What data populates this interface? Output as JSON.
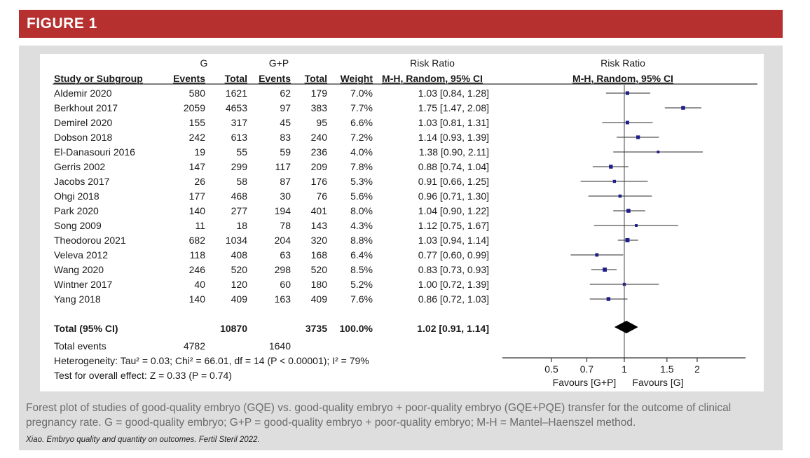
{
  "banner": {
    "title": "FIGURE 1"
  },
  "caption": "Forest plot of studies of good-quality embryo (GQE) vs. good-quality embryo + poor-quality embryo (GQE+PQE) transfer for the outcome of clinical pregnancy rate. G = good-quality embryo; G+P = good-quality embryo + poor-quality embryo; M-H = Mantel–Haenszel method.",
  "credit": "Xiao. Embryo quality and quantity on outcomes. Fertil Steril 2022.",
  "colors": {
    "banner": "#b5302e",
    "marker": "#1f1f8a",
    "diamond": "#000000"
  },
  "headers": {
    "group_g": "G",
    "group_gp": "G+P",
    "risk_ratio": "Risk Ratio",
    "plot_title": "Risk Ratio",
    "plot_method": "M-H, Random, 95% CI",
    "study": "Study or Subgroup",
    "events_g": "Events",
    "total_g": "Total",
    "events_gp": "Events",
    "total_gp": "Total",
    "weight": "Weight",
    "method": "M-H, Random, 95% CI"
  },
  "chart_data": {
    "type": "forest",
    "xaxis": {
      "scale": "log",
      "ticks": [
        "0.5",
        "0.7",
        "1",
        "1.5",
        "2"
      ],
      "tick_values": [
        0.5,
        0.7,
        1,
        1.5,
        2
      ],
      "range": [
        0.5,
        2
      ]
    },
    "favours_left": "Favours [G+P]",
    "favours_right": "Favours [G]",
    "studies": [
      {
        "name": "Aldemir 2020",
        "events_g": "580",
        "total_g": "1621",
        "events_gp": "62",
        "total_gp": "179",
        "weight": "7.0%",
        "ci_text": "1.03 [0.84, 1.28]",
        "rr": 1.03,
        "lo": 0.84,
        "hi": 1.28
      },
      {
        "name": "Berkhout 2017",
        "events_g": "2059",
        "total_g": "4653",
        "events_gp": "97",
        "total_gp": "383",
        "weight": "7.7%",
        "ci_text": "1.75 [1.47, 2.08]",
        "rr": 1.75,
        "lo": 1.47,
        "hi": 2.08
      },
      {
        "name": "Demirel 2020",
        "events_g": "155",
        "total_g": "317",
        "events_gp": "45",
        "total_gp": "95",
        "weight": "6.6%",
        "ci_text": "1.03 [0.81, 1.31]",
        "rr": 1.03,
        "lo": 0.81,
        "hi": 1.31
      },
      {
        "name": "Dobson 2018",
        "events_g": "242",
        "total_g": "613",
        "events_gp": "83",
        "total_gp": "240",
        "weight": "7.2%",
        "ci_text": "1.14 [0.93, 1.39]",
        "rr": 1.14,
        "lo": 0.93,
        "hi": 1.39
      },
      {
        "name": "El-Danasouri 2016",
        "events_g": "19",
        "total_g": "55",
        "events_gp": "59",
        "total_gp": "236",
        "weight": "4.0%",
        "ci_text": "1.38 [0.90, 2.11]",
        "rr": 1.38,
        "lo": 0.9,
        "hi": 2.11
      },
      {
        "name": "Gerris  2002",
        "events_g": "147",
        "total_g": "299",
        "events_gp": "117",
        "total_gp": "209",
        "weight": "7.8%",
        "ci_text": "0.88 [0.74, 1.04]",
        "rr": 0.88,
        "lo": 0.74,
        "hi": 1.04
      },
      {
        "name": "Jacobs 2017",
        "events_g": "26",
        "total_g": "58",
        "events_gp": "87",
        "total_gp": "176",
        "weight": "5.3%",
        "ci_text": "0.91 [0.66, 1.25]",
        "rr": 0.91,
        "lo": 0.66,
        "hi": 1.25
      },
      {
        "name": "Ohgi 2018",
        "events_g": "177",
        "total_g": "468",
        "events_gp": "30",
        "total_gp": "76",
        "weight": "5.6%",
        "ci_text": "0.96 [0.71, 1.30]",
        "rr": 0.96,
        "lo": 0.71,
        "hi": 1.3
      },
      {
        "name": "Park 2020",
        "events_g": "140",
        "total_g": "277",
        "events_gp": "194",
        "total_gp": "401",
        "weight": "8.0%",
        "ci_text": "1.04 [0.90, 1.22]",
        "rr": 1.04,
        "lo": 0.9,
        "hi": 1.22
      },
      {
        "name": "Song  2009",
        "events_g": "11",
        "total_g": "18",
        "events_gp": "78",
        "total_gp": "143",
        "weight": "4.3%",
        "ci_text": "1.12 [0.75, 1.67]",
        "rr": 1.12,
        "lo": 0.75,
        "hi": 1.67
      },
      {
        "name": "Theodorou 2021",
        "events_g": "682",
        "total_g": "1034",
        "events_gp": "204",
        "total_gp": "320",
        "weight": "8.8%",
        "ci_text": "1.03 [0.94, 1.14]",
        "rr": 1.03,
        "lo": 0.94,
        "hi": 1.14
      },
      {
        "name": "Veleva 2012",
        "events_g": "118",
        "total_g": "408",
        "events_gp": "63",
        "total_gp": "168",
        "weight": "6.4%",
        "ci_text": "0.77 [0.60, 0.99]",
        "rr": 0.77,
        "lo": 0.6,
        "hi": 0.99
      },
      {
        "name": "Wang 2020",
        "events_g": "246",
        "total_g": "520",
        "events_gp": "298",
        "total_gp": "520",
        "weight": "8.5%",
        "ci_text": "0.83 [0.73, 0.93]",
        "rr": 0.83,
        "lo": 0.73,
        "hi": 0.93
      },
      {
        "name": "Wintner 2017",
        "events_g": "40",
        "total_g": "120",
        "events_gp": "60",
        "total_gp": "180",
        "weight": "5.2%",
        "ci_text": "1.00 [0.72, 1.39]",
        "rr": 1.0,
        "lo": 0.72,
        "hi": 1.39
      },
      {
        "name": "Yang 2018",
        "events_g": "140",
        "total_g": "409",
        "events_gp": "163",
        "total_gp": "409",
        "weight": "7.6%",
        "ci_text": "0.86 [0.72, 1.03]",
        "rr": 0.86,
        "lo": 0.72,
        "hi": 1.03
      }
    ],
    "total": {
      "name": "Total (95% CI)",
      "total_g": "10870",
      "total_gp": "3735",
      "weight": "100.0%",
      "ci_text": "1.02 [0.91, 1.14]",
      "rr": 1.02,
      "lo": 0.91,
      "hi": 1.14
    },
    "total_events": {
      "label": "Total events",
      "g": "4782",
      "gp": "1640"
    },
    "heterogeneity": "Heterogeneity: Tau² = 0.03; Chi² = 66.01, df = 14 (P < 0.00001); I² = 79%",
    "overall_effect": "Test for overall effect: Z = 0.33 (P = 0.74)"
  }
}
